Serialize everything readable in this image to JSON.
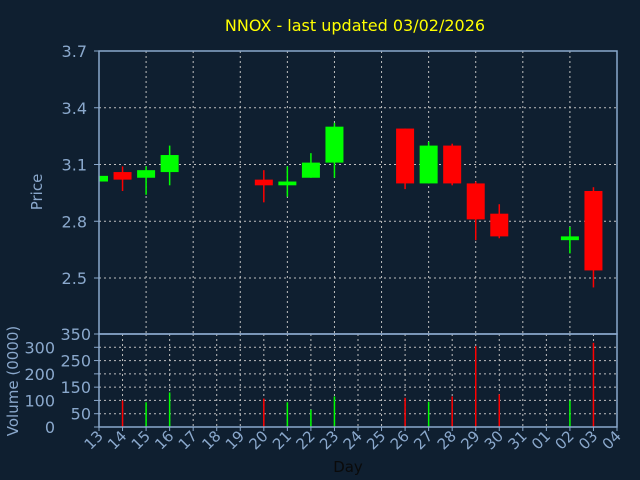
{
  "chart_data": [
    {
      "type": "candlestick",
      "title": "NNOX - last updated 03/02/2026",
      "ylabel": "Price",
      "ylim": [
        2.4,
        3.7
      ],
      "yticks": [
        "3.7",
        "3.4",
        "3.1",
        "2.8",
        "2.5"
      ],
      "grid": true,
      "colors": {
        "up": "#00ff00",
        "down": "#ff0000"
      },
      "candles": [
        {
          "day": "13",
          "open": 3.01,
          "high": 3.04,
          "low": 3.01,
          "close": 3.04
        },
        {
          "day": "14",
          "open": 3.06,
          "high": 3.09,
          "low": 2.96,
          "close": 3.02
        },
        {
          "day": "15",
          "open": 3.03,
          "high": 3.09,
          "low": 2.94,
          "close": 3.07
        },
        {
          "day": "16",
          "open": 3.06,
          "high": 3.2,
          "low": 2.99,
          "close": 3.15
        },
        {
          "day": "20",
          "open": 3.02,
          "high": 3.07,
          "low": 2.9,
          "close": 2.99
        },
        {
          "day": "21",
          "open": 2.99,
          "high": 3.09,
          "low": 2.93,
          "close": 3.01
        },
        {
          "day": "22",
          "open": 3.03,
          "high": 3.16,
          "low": 3.03,
          "close": 3.11
        },
        {
          "day": "23",
          "open": 3.11,
          "high": 3.32,
          "low": 3.03,
          "close": 3.3
        },
        {
          "day": "26",
          "open": 3.29,
          "high": 3.29,
          "low": 2.97,
          "close": 3.0
        },
        {
          "day": "27",
          "open": 3.0,
          "high": 3.22,
          "low": 3.0,
          "close": 3.2
        },
        {
          "day": "28",
          "open": 3.2,
          "high": 3.21,
          "low": 2.99,
          "close": 3.0
        },
        {
          "day": "29",
          "open": 3.0,
          "high": 3.01,
          "low": 2.7,
          "close": 2.81
        },
        {
          "day": "30",
          "open": 2.84,
          "high": 2.89,
          "low": 2.71,
          "close": 2.72
        },
        {
          "day": "02",
          "open": 2.7,
          "high": 2.77,
          "low": 2.63,
          "close": 2.72
        },
        {
          "day": "03",
          "open": 2.96,
          "high": 2.98,
          "low": 2.45,
          "close": 2.54
        }
      ]
    },
    {
      "type": "bar",
      "ylabel": "Volume (0000)",
      "xlabel": "Day",
      "ylim": [
        0,
        350
      ],
      "yticks": [
        "350",
        "300",
        "250",
        "200",
        "150",
        "100",
        "50",
        "0"
      ],
      "categories": [
        "13",
        "14",
        "15",
        "16",
        "17",
        "18",
        "19",
        "20",
        "21",
        "22",
        "23",
        "24",
        "25",
        "26",
        "27",
        "28",
        "29",
        "30",
        "31",
        "01",
        "02",
        "03",
        "04"
      ],
      "volumes": [
        {
          "day": "14",
          "value": 100,
          "dir": "down"
        },
        {
          "day": "15",
          "value": 93,
          "dir": "up"
        },
        {
          "day": "16",
          "value": 130,
          "dir": "up"
        },
        {
          "day": "20",
          "value": 107,
          "dir": "down"
        },
        {
          "day": "21",
          "value": 93,
          "dir": "up"
        },
        {
          "day": "22",
          "value": 65,
          "dir": "up"
        },
        {
          "day": "23",
          "value": 115,
          "dir": "up"
        },
        {
          "day": "26",
          "value": 110,
          "dir": "down"
        },
        {
          "day": "27",
          "value": 95,
          "dir": "up"
        },
        {
          "day": "28",
          "value": 115,
          "dir": "down"
        },
        {
          "day": "29",
          "value": 304,
          "dir": "down"
        },
        {
          "day": "30",
          "value": 123,
          "dir": "down"
        },
        {
          "day": "02",
          "value": 100,
          "dir": "up"
        },
        {
          "day": "03",
          "value": 317,
          "dir": "down"
        }
      ]
    }
  ]
}
